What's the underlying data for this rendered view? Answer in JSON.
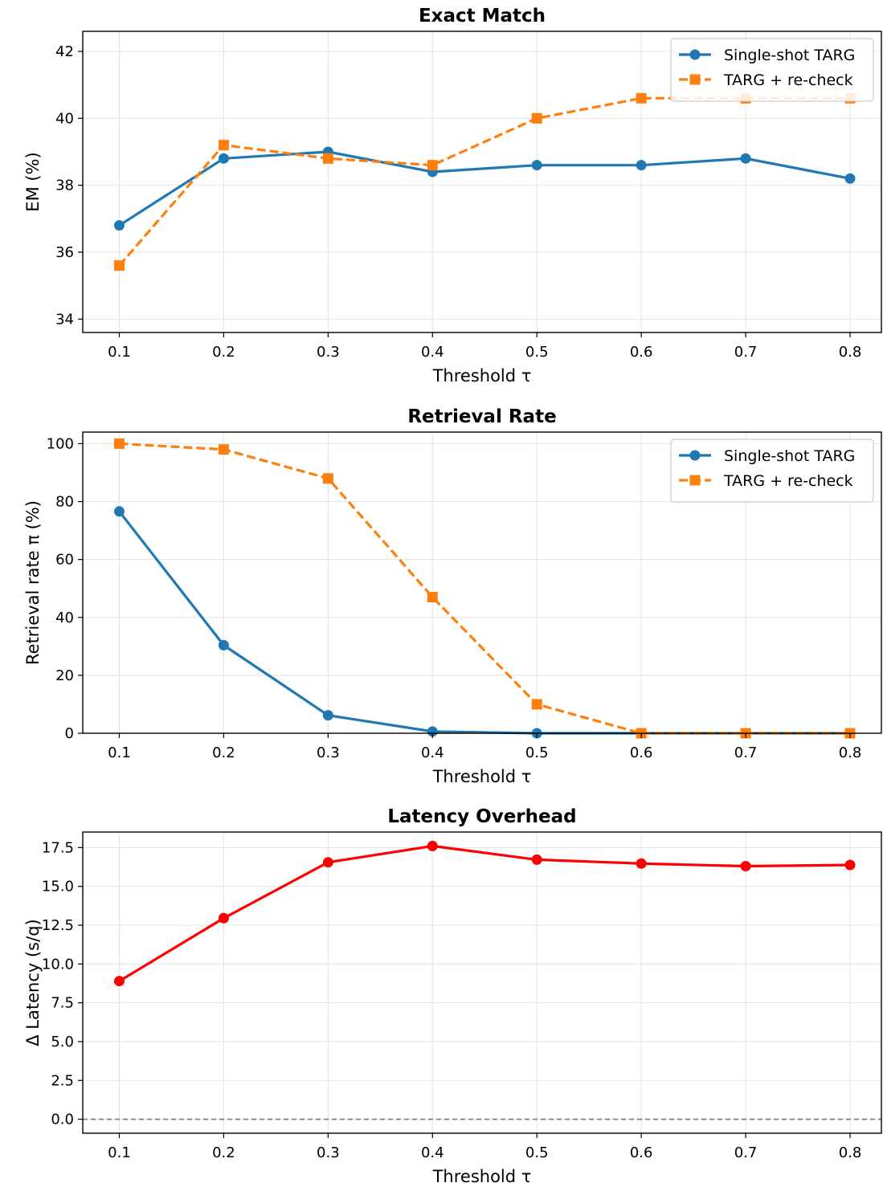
{
  "chart_data": [
    {
      "type": "line",
      "title": "Exact Match",
      "xlabel": "Threshold τ",
      "ylabel": "EM (%)",
      "x": [
        0.1,
        0.2,
        0.3,
        0.4,
        0.5,
        0.6,
        0.7,
        0.8
      ],
      "x_ticks": [
        "0.1",
        "0.2",
        "0.3",
        "0.4",
        "0.5",
        "0.6",
        "0.7",
        "0.8"
      ],
      "xlim": [
        0.065,
        0.83
      ],
      "ylim": [
        33.6,
        42.6
      ],
      "y_ticks": [
        "34",
        "36",
        "38",
        "40",
        "42"
      ],
      "grid": true,
      "legend": "upper right",
      "series": [
        {
          "name": "Single-shot TARG",
          "values": [
            36.8,
            38.8,
            39.0,
            38.4,
            38.6,
            38.6,
            38.8,
            38.2
          ],
          "color": "#1f77b4",
          "marker": "circle",
          "linestyle": "solid"
        },
        {
          "name": "TARG + re-check",
          "values": [
            35.6,
            39.2,
            38.8,
            38.6,
            40.0,
            40.6,
            40.6,
            40.6
          ],
          "color": "#ff7f0e",
          "marker": "square",
          "linestyle": "dashed"
        }
      ]
    },
    {
      "type": "line",
      "title": "Retrieval Rate",
      "xlabel": "Threshold τ",
      "ylabel": "Retrieval rate π (%)",
      "x": [
        0.1,
        0.2,
        0.3,
        0.4,
        0.5,
        0.6,
        0.7,
        0.8
      ],
      "x_ticks": [
        "0.1",
        "0.2",
        "0.3",
        "0.4",
        "0.5",
        "0.6",
        "0.7",
        "0.8"
      ],
      "xlim": [
        0.065,
        0.83
      ],
      "ylim": [
        0,
        104
      ],
      "y_ticks": [
        "0",
        "20",
        "40",
        "60",
        "80",
        "100"
      ],
      "grid": true,
      "legend": "upper right",
      "series": [
        {
          "name": "Single-shot TARG",
          "values": [
            76.6,
            30.4,
            6.2,
            0.6,
            0.0,
            0.0,
            0.0,
            0.0
          ],
          "color": "#1f77b4",
          "marker": "circle",
          "linestyle": "solid"
        },
        {
          "name": "TARG + re-check",
          "values": [
            100.0,
            98.0,
            88.0,
            47.0,
            10.0,
            0.0,
            0.0,
            0.0
          ],
          "color": "#ff7f0e",
          "marker": "square",
          "linestyle": "dashed"
        }
      ]
    },
    {
      "type": "line",
      "title": "Latency Overhead",
      "xlabel": "Threshold τ",
      "ylabel": "Δ Latency (s/q)",
      "x": [
        0.1,
        0.2,
        0.3,
        0.4,
        0.5,
        0.6,
        0.7,
        0.8
      ],
      "x_ticks": [
        "0.1",
        "0.2",
        "0.3",
        "0.4",
        "0.5",
        "0.6",
        "0.7",
        "0.8"
      ],
      "xlim": [
        0.065,
        0.83
      ],
      "ylim": [
        -0.9,
        18.5
      ],
      "y_ticks": [
        "0.0",
        "2.5",
        "5.0",
        "7.5",
        "10.0",
        "12.5",
        "15.0",
        "17.5"
      ],
      "grid": true,
      "reference_line": {
        "y": 0,
        "color": "#808080",
        "linestyle": "dashed"
      },
      "series": [
        {
          "values": [
            8.9,
            12.95,
            16.55,
            17.6,
            16.72,
            16.47,
            16.3,
            16.38
          ],
          "color": "#ff0000",
          "marker": "circle",
          "linestyle": "solid"
        }
      ]
    }
  ]
}
